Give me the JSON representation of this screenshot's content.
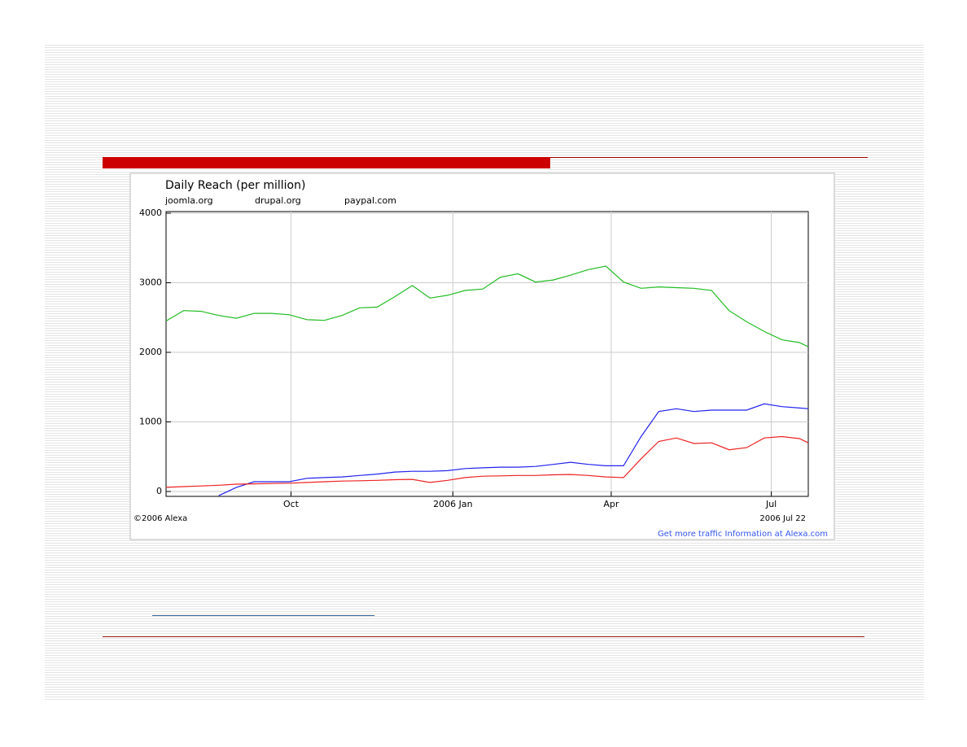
{
  "chart_data": {
    "type": "line",
    "title": "Daily Reach (per million)",
    "x": [
      0,
      10,
      20,
      30,
      40,
      50,
      60,
      70,
      80,
      90,
      100,
      110,
      120,
      130,
      140,
      150,
      160,
      170,
      180,
      190,
      200,
      210,
      220,
      230,
      240,
      250,
      260,
      270,
      280,
      290,
      300,
      310,
      320,
      330,
      340,
      350,
      360,
      365
    ],
    "xlim": [
      0,
      365
    ],
    "xticks": [
      {
        "value": 71,
        "label": "Oct"
      },
      {
        "value": 163,
        "label": "2006 Jan"
      },
      {
        "value": 253,
        "label": "Apr"
      },
      {
        "value": 344,
        "label": "Jul"
      }
    ],
    "ylim": [
      -70,
      4000
    ],
    "yticks": [
      0,
      1000,
      2000,
      3000,
      4000
    ],
    "grid": true,
    "series": [
      {
        "name": "joomla.org",
        "color": "#2222ee",
        "values": [
          null,
          null,
          null,
          -60,
          60,
          140,
          140,
          140,
          190,
          200,
          210,
          230,
          250,
          280,
          290,
          290,
          300,
          330,
          340,
          350,
          350,
          360,
          390,
          420,
          390,
          370,
          370,
          790,
          1150,
          1190,
          1150,
          1170,
          1170,
          1170,
          1260,
          1220,
          1200,
          1190
        ]
      },
      {
        "name": "drupal.org",
        "color": "#ee2222",
        "values": [
          60,
          70,
          80,
          90,
          105,
          110,
          115,
          120,
          130,
          140,
          150,
          155,
          160,
          170,
          175,
          130,
          160,
          200,
          220,
          225,
          230,
          230,
          240,
          245,
          230,
          210,
          200,
          470,
          720,
          770,
          690,
          700,
          600,
          630,
          770,
          790,
          760,
          700
        ]
      },
      {
        "name": "paypal.com",
        "color": "#22bb22",
        "values": [
          2450,
          2600,
          2590,
          2530,
          2490,
          2560,
          2560,
          2540,
          2470,
          2460,
          2530,
          2640,
          2650,
          2800,
          2960,
          2780,
          2820,
          2890,
          2910,
          3080,
          3130,
          3010,
          3040,
          3110,
          3190,
          3240,
          3010,
          2920,
          2940,
          2930,
          2920,
          2890,
          2600,
          2440,
          2300,
          2180,
          2140,
          2080
        ]
      }
    ],
    "annotations": [
      "©2006 Alexa",
      "2006 Jul 22",
      "Get more traffic Information at Alexa.com"
    ]
  }
}
